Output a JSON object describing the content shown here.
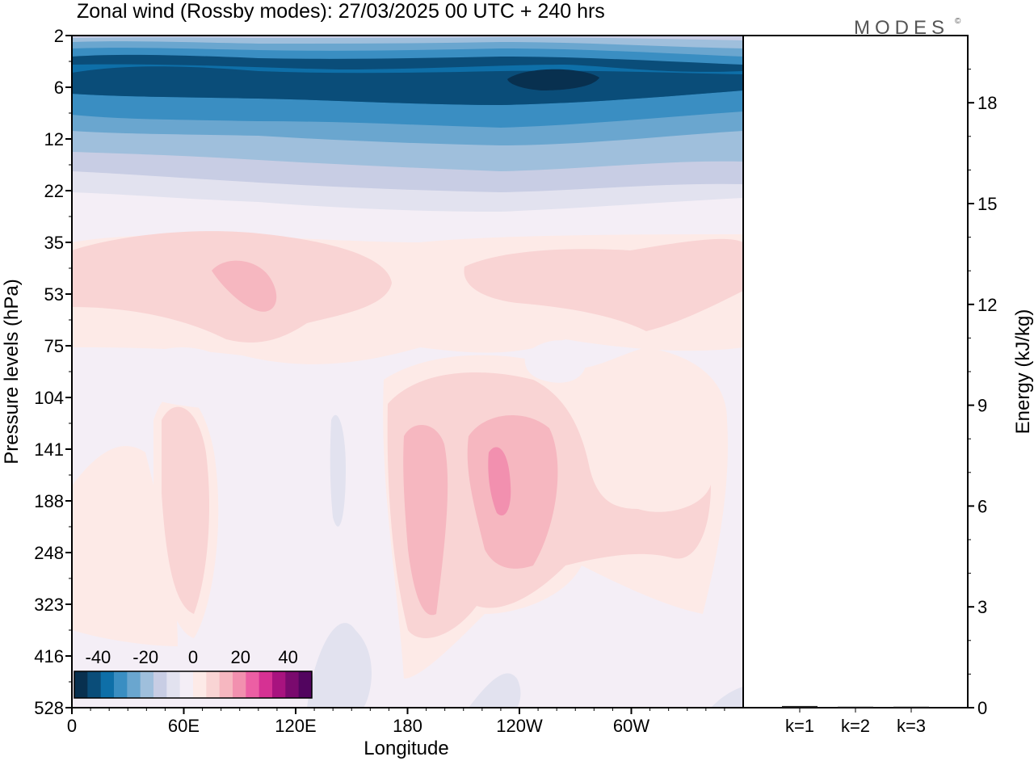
{
  "chart_data": [
    {
      "type": "heatmap",
      "title": "Zonal wind (Rossby modes):  27/03/2025  00 UTC  + 240 hrs",
      "xlabel": "Longitude",
      "ylabel": "Pressure levels (hPa)",
      "x_ticks": [
        "0",
        "60E",
        "120E",
        "180",
        "120W",
        "60W"
      ],
      "x_tick_values": [
        0,
        60,
        120,
        180,
        240,
        300
      ],
      "xlim": [
        0,
        360
      ],
      "y_levels": [
        2,
        6,
        12,
        22,
        35,
        53,
        75,
        104,
        141,
        188,
        248,
        323,
        416,
        528
      ],
      "y_ticks": [
        "2",
        "6",
        "12",
        "22",
        "35",
        "53",
        "75",
        "104",
        "141",
        "188",
        "248",
        "323",
        "416",
        "528"
      ],
      "y_scale": "pressure levels, top 2 hPa, bottom 528 hPa",
      "colorbar": {
        "ticks": [
          "-40",
          "-20",
          "0",
          "20",
          "40"
        ],
        "tick_values": [
          -40,
          -20,
          0,
          20,
          40
        ],
        "range": [
          -50,
          50
        ],
        "step": 5,
        "colors": [
          "#08304f",
          "#0a4d79",
          "#0e6fa8",
          "#3a8ec2",
          "#6aa6cf",
          "#9fbfdc",
          "#c8cde4",
          "#e2e2ef",
          "#f4eef6",
          "#fdeae7",
          "#f9d4d4",
          "#f6b7c0",
          "#f290af",
          "#ec5fa4",
          "#d63193",
          "#a8137f",
          "#7a0a6e",
          "#52055f"
        ]
      },
      "regions": [
        {
          "name": "upper easterly band",
          "levels_hPa": [
            2,
            22
          ],
          "value_min": -45,
          "value_max": 0
        },
        {
          "name": "strongest easterly core",
          "lon_center": 232,
          "level_hPa": 6,
          "value": -45
        },
        {
          "name": "positive band",
          "levels_hPa": [
            35,
            75
          ],
          "value_max": 15
        },
        {
          "name": "westerly core",
          "lon_center": 224,
          "level_hPa": 160,
          "value": 20
        }
      ]
    },
    {
      "type": "bar",
      "categories": [
        "k=1",
        "k=2",
        "k=3"
      ],
      "values": [
        0.05,
        0.03,
        0.03
      ],
      "ylabel": "Energy (kJ/kg)",
      "ylim": [
        0,
        20
      ],
      "y_ticks": [
        0,
        3,
        6,
        9,
        12,
        15,
        18
      ]
    }
  ],
  "brand": {
    "logo_text": "MODES",
    "mark": "©"
  }
}
